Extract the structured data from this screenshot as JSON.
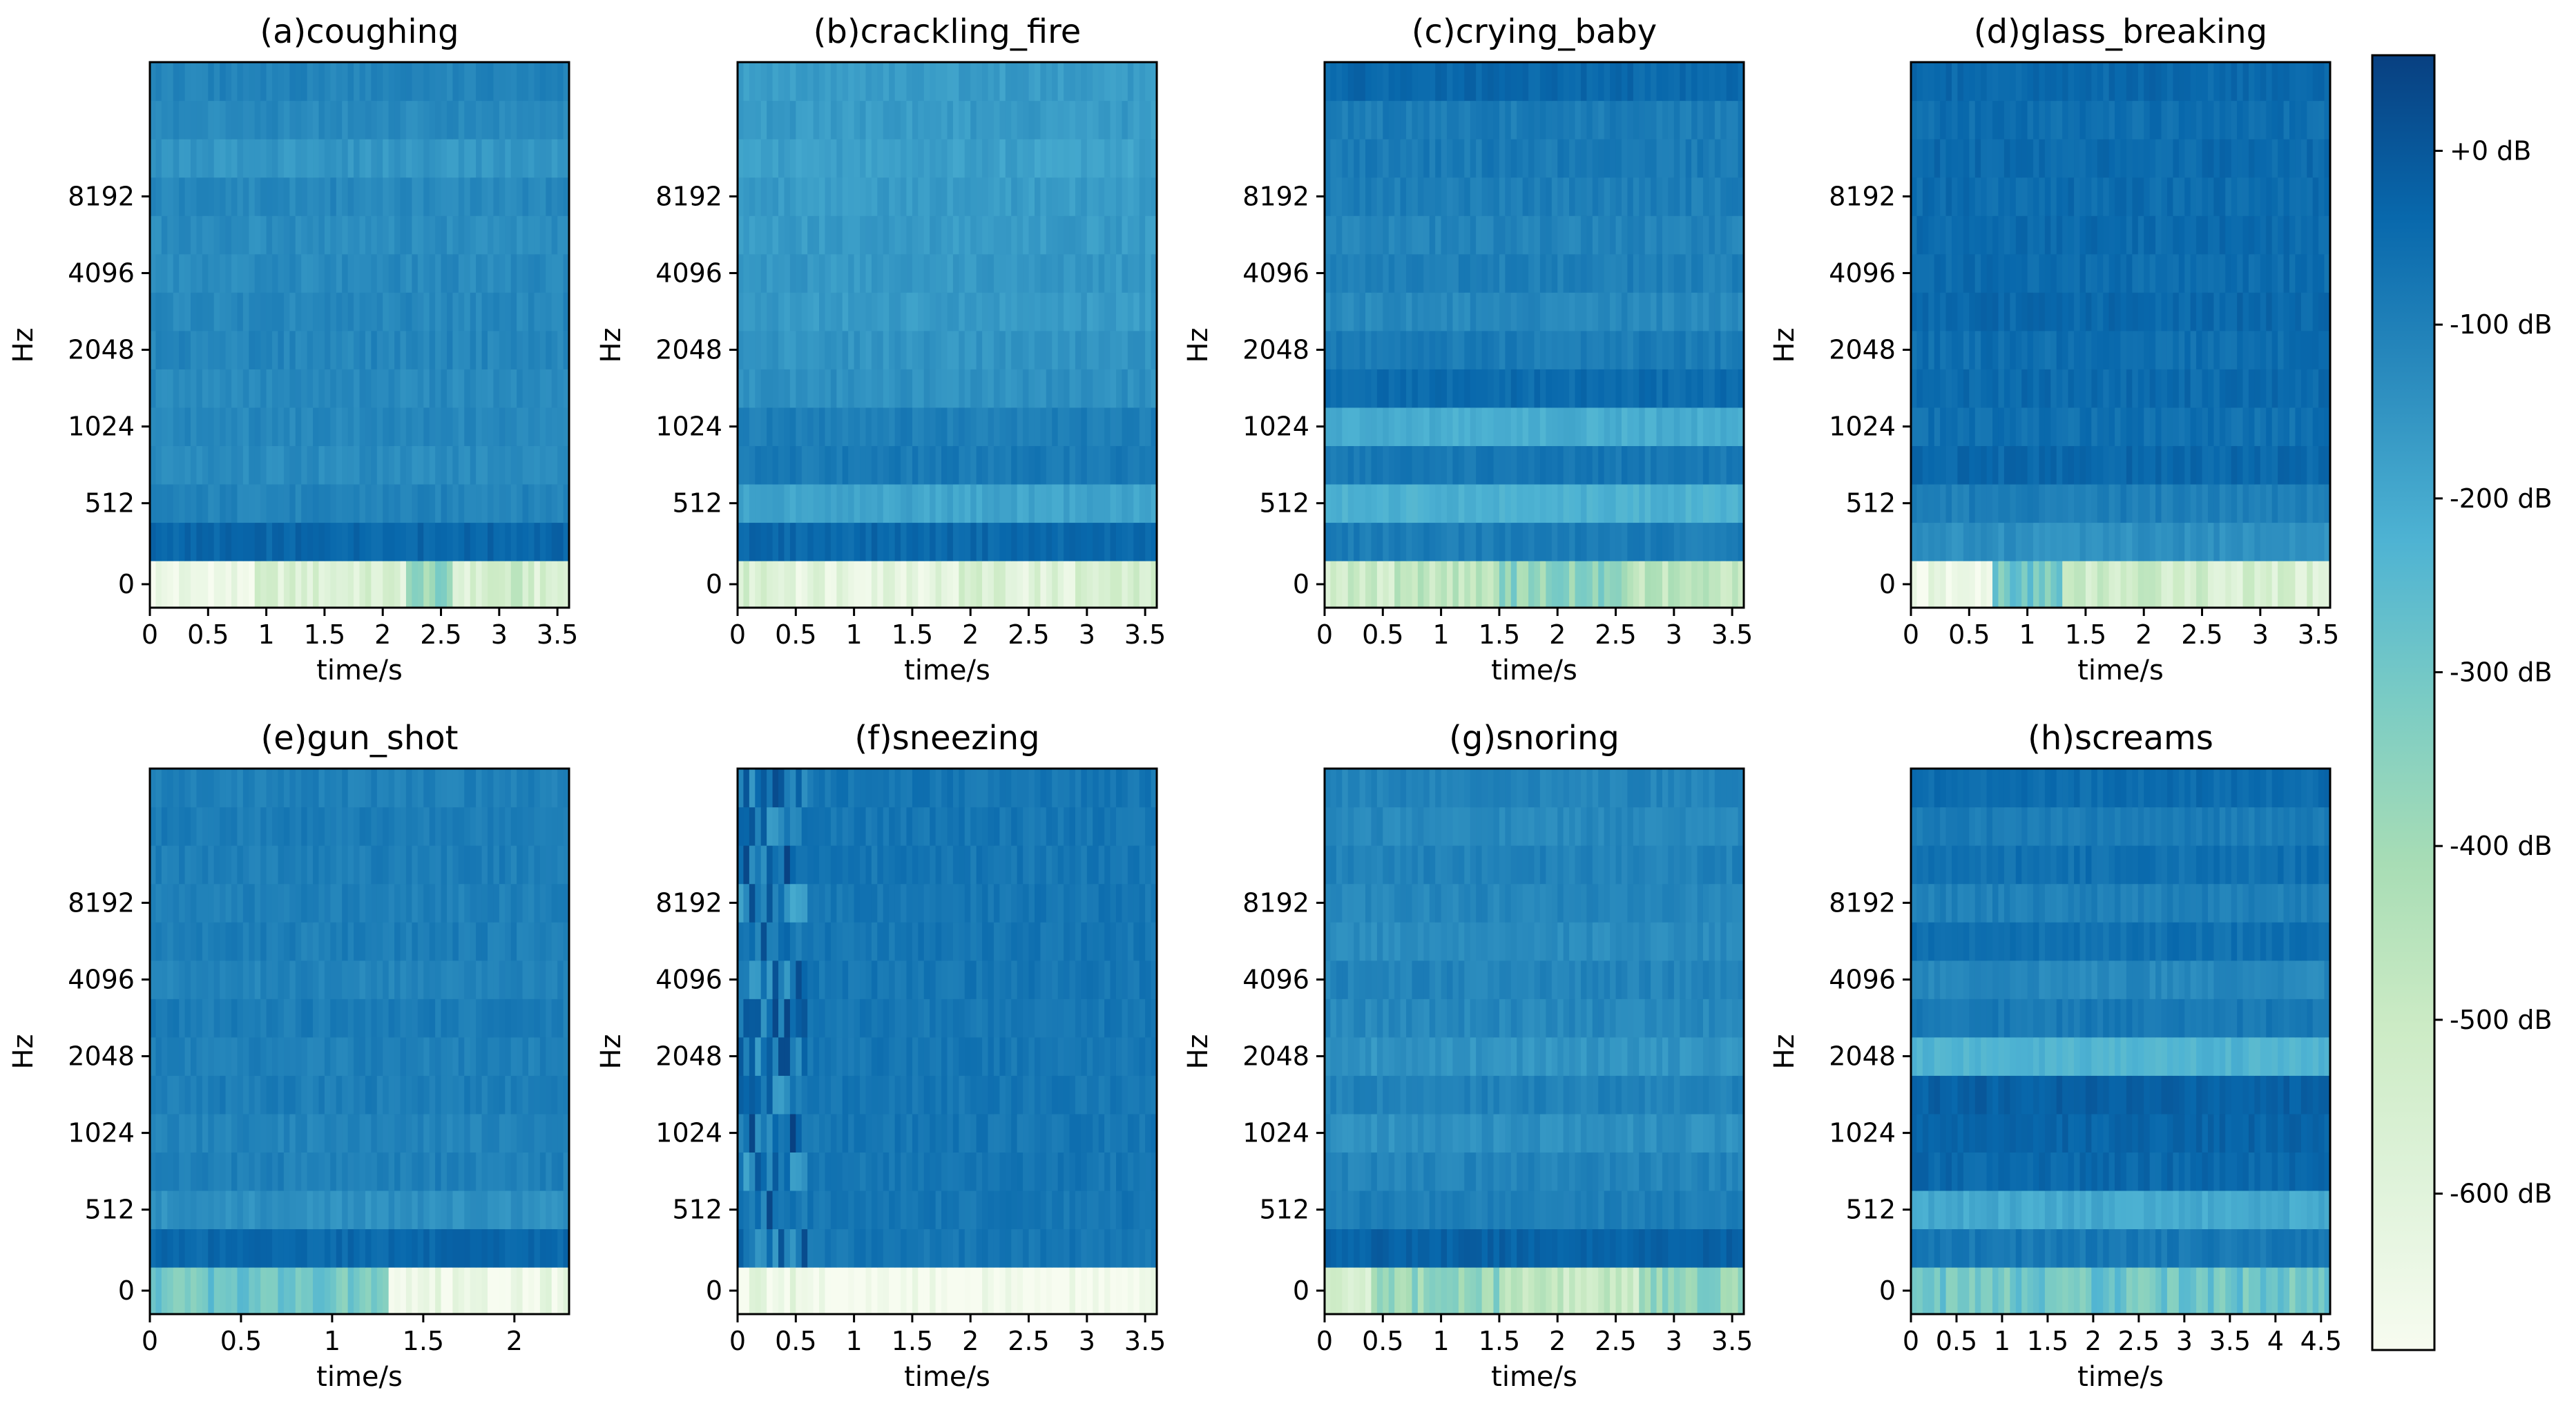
{
  "chart_data": {
    "type": "heatmap",
    "panels": [
      {
        "title": "(a)coughing",
        "xlabel": "time/s",
        "ylabel": "Hz",
        "x_ticks": [
          "0",
          "0.5",
          "1",
          "1.5",
          "2",
          "2.5",
          "3",
          "3.5"
        ],
        "xlim": [
          0,
          3.6
        ],
        "y_ticks": [
          "0",
          "512",
          "1024",
          "2048",
          "4096",
          "8192"
        ],
        "band_levels_db": [
          -570,
          -35,
          -110,
          -130,
          -120,
          -125,
          -115,
          -120,
          -125,
          -130,
          -120,
          -155,
          -125,
          -110
        ],
        "low_band_dips": [
          [
            0.0,
            0.9,
            -650
          ],
          [
            2.2,
            2.6,
            -380
          ],
          [
            2.85,
            3.3,
            -520
          ]
        ]
      },
      {
        "title": "(b)crackling_fire",
        "xlabel": "time/s",
        "ylabel": "Hz",
        "x_ticks": [
          "0",
          "0.5",
          "1",
          "1.5",
          "2",
          "2.5",
          "3",
          "3.5"
        ],
        "xlim": [
          0,
          3.6
        ],
        "y_ticks": [
          "0",
          "512",
          "1024",
          "2048",
          "4096",
          "8192"
        ],
        "band_levels_db": [
          -560,
          -40,
          -190,
          -85,
          -95,
          -140,
          -150,
          -165,
          -160,
          -165,
          -170,
          -180,
          -165,
          -170
        ],
        "low_band_dips": [
          [
            0.5,
            1.9,
            -600
          ],
          [
            2.3,
            2.9,
            -590
          ]
        ]
      },
      {
        "title": "(c)crying_baby",
        "xlabel": "time/s",
        "ylabel": "Hz",
        "x_ticks": [
          "0",
          "0.5",
          "1",
          "1.5",
          "2",
          "2.5",
          "3",
          "3.5"
        ],
        "xlim": [
          0,
          3.6
        ],
        "y_ticks": [
          "0",
          "512",
          "1024",
          "2048",
          "4096",
          "8192"
        ],
        "band_levels_db": [
          -470,
          -90,
          -220,
          -80,
          -210,
          -50,
          -90,
          -120,
          -100,
          -110,
          -95,
          -85,
          -90,
          -40
        ],
        "low_band_dips": [
          [
            0.0,
            0.6,
            -520
          ],
          [
            1.5,
            2.6,
            -360
          ]
        ]
      },
      {
        "title": "(d)glass_breaking",
        "xlabel": "time/s",
        "ylabel": "Hz",
        "x_ticks": [
          "0",
          "0.5",
          "1",
          "1.5",
          "2",
          "2.5",
          "3",
          "3.5"
        ],
        "xlim": [
          0,
          3.6
        ],
        "y_ticks": [
          "0",
          "512",
          "1024",
          "2048",
          "4096",
          "8192"
        ],
        "band_levels_db": [
          -300,
          -140,
          -95,
          -40,
          -60,
          -45,
          -55,
          -40,
          -50,
          -45,
          -50,
          -45,
          -55,
          -40
        ],
        "low_band_dips": [
          [
            0.0,
            0.7,
            -650
          ],
          [
            1.3,
            2.55,
            -520
          ],
          [
            2.55,
            3.6,
            -560
          ]
        ]
      },
      {
        "title": "(e)gun_shot",
        "xlabel": "time/s",
        "ylabel": "Hz",
        "x_ticks": [
          "0",
          "0.5",
          "1",
          "1.5",
          "2"
        ],
        "xlim": [
          0,
          2.3
        ],
        "y_ticks": [
          "0",
          "512",
          "1024",
          "2048",
          "4096",
          "8192"
        ],
        "band_levels_db": [
          -300,
          -40,
          -140,
          -100,
          -110,
          -95,
          -100,
          -90,
          -110,
          -95,
          -100,
          -95,
          -90,
          -100
        ],
        "low_band_dips": [
          [
            1.3,
            2.3,
            -640
          ]
        ]
      },
      {
        "title": "(f)sneezing",
        "xlabel": "time/s",
        "ylabel": "Hz",
        "x_ticks": [
          "0",
          "0.5",
          "1",
          "1.5",
          "2",
          "2.5",
          "3",
          "3.5"
        ],
        "xlim": [
          0,
          3.6
        ],
        "y_ticks": [
          "0",
          "512",
          "1024",
          "2048",
          "4096",
          "8192"
        ],
        "band_levels_db": [
          -690,
          -75,
          -75,
          -75,
          -75,
          -75,
          -75,
          -75,
          -75,
          -75,
          -75,
          -75,
          -75,
          -75
        ],
        "low_band_dips": []
      },
      {
        "title": "(g)snoring",
        "xlabel": "time/s",
        "ylabel": "Hz",
        "x_ticks": [
          "0",
          "0.5",
          "1",
          "1.5",
          "2",
          "2.5",
          "3",
          "3.5"
        ],
        "xlim": [
          0,
          3.6
        ],
        "y_ticks": [
          "0",
          "512",
          "1024",
          "2048",
          "4096",
          "8192"
        ],
        "band_levels_db": [
          -370,
          -25,
          -95,
          -110,
          -140,
          -105,
          -150,
          -120,
          -110,
          -130,
          -115,
          -105,
          -120,
          -110
        ],
        "low_band_dips": [
          [
            0.0,
            0.4,
            -560
          ],
          [
            1.5,
            2.7,
            -500
          ]
        ]
      },
      {
        "title": "(h)screams",
        "xlabel": "time/s",
        "ylabel": "Hz",
        "x_ticks": [
          "0",
          "0.5",
          "1",
          "1.5",
          "2",
          "2.5",
          "3",
          "3.5",
          "4",
          "4.5"
        ],
        "xlim": [
          0,
          4.6
        ],
        "y_ticks": [
          "0",
          "512",
          "1024",
          "2048",
          "4096",
          "8192"
        ],
        "band_levels_db": [
          -290,
          -80,
          -200,
          -40,
          -30,
          -20,
          -230,
          -80,
          -120,
          -60,
          -100,
          -60,
          -90,
          -50
        ],
        "low_band_dips": []
      }
    ],
    "colorbar": {
      "colormap": "GnBu",
      "range_db": [
        -690,
        55
      ],
      "tick_values": [
        0,
        -100,
        -200,
        -300,
        -400,
        -500,
        -600
      ],
      "tick_labels": [
        "+0 dB",
        "-100 dB",
        "-200 dB",
        "-300 dB",
        "-400 dB",
        "-500 dB",
        "-600 dB"
      ]
    }
  }
}
